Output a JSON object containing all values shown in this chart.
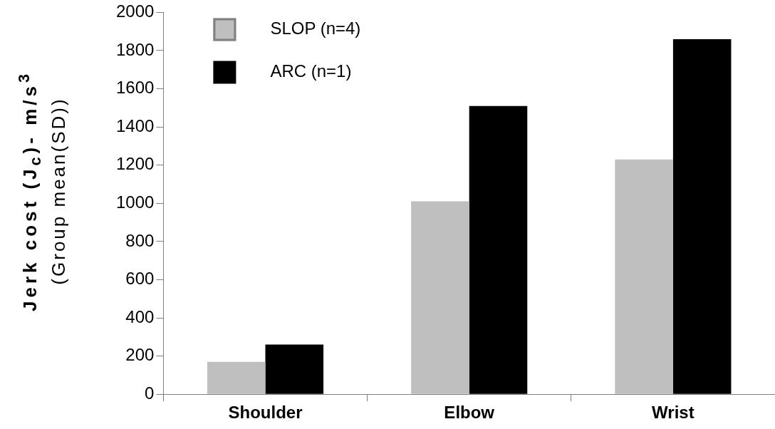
{
  "chart_data": {
    "type": "bar",
    "ylabel": "Jerk cost (J$_{c}$)- m/s$^{3}$\n(Group mean(SD))",
    "categories": [
      "Shoulder",
      "Elbow",
      "Wrist"
    ],
    "series": [
      {
        "name": "SLOP (n=4)",
        "color": "#bfbfbf",
        "values": [
          170,
          1010,
          1230
        ]
      },
      {
        "name": "ARC (n=1)",
        "color": "#000000",
        "values": [
          260,
          1510,
          1860
        ]
      }
    ],
    "ylim": [
      0,
      2000
    ],
    "yticks": [
      0,
      200,
      400,
      600,
      800,
      1000,
      1200,
      1400,
      1600,
      1800,
      2000
    ],
    "grid": false,
    "legend": "top left"
  }
}
